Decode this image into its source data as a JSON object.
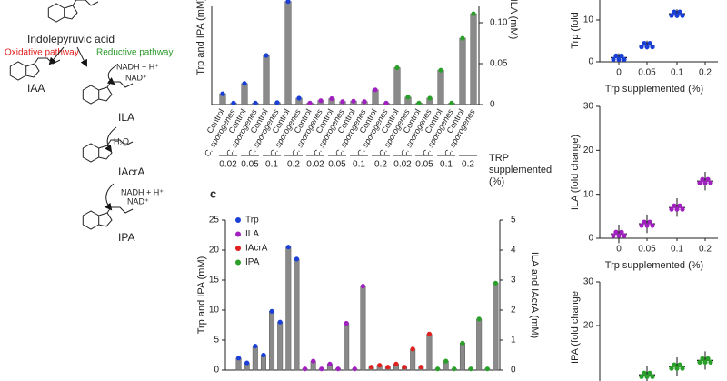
{
  "diagram": {
    "compound_top": "Indolepyruvic acid",
    "oxidative": "Oxidative pathway",
    "reductive": "Reductive pathway",
    "cofactor1_in": "NADH + H⁺",
    "cofactor1_out": "NAD⁺",
    "product_oxidative": "IAA",
    "intermediate1": "ILA",
    "water": "H₂O",
    "intermediate2": "IAcrA",
    "cofactor2_in": "NADH + H⁺",
    "cofactor2_out": "NAD⁺",
    "product_reductive": "IPA"
  },
  "panel_label": "c",
  "chart_data": [
    {
      "type": "bar",
      "ylabel": "Trp and IPA (mM)",
      "y2label": "ILA (mM)",
      "categories": [
        "Control",
        "C. sporogenes",
        "Control",
        "C. sporogenes",
        "Control",
        "C. sporogenes",
        "Control",
        "C. sporogenes",
        "Control",
        "C. sporogenes",
        "Control",
        "C. sporogenes",
        "Control",
        "C. sporogenes",
        "Control",
        "C. sporogenes",
        "Control",
        "C. sporogenes",
        "Control",
        "C. sporogenes",
        "Control",
        "C. sporogenes",
        "Control",
        "C. sporogenes"
      ],
      "values": [
        2.2,
        0.3,
        4.3,
        0.3,
        10,
        0.4,
        21,
        1.3,
        0.3,
        0.8,
        1.2,
        0.6,
        0.7,
        0.6,
        3,
        0.3,
        7.5,
        1.5,
        0.3,
        1.3,
        7,
        0.3,
        13.5,
        18.5
      ],
      "colors": [
        "#1a3fd6",
        "#1a3fd6",
        "#1a3fd6",
        "#1a3fd6",
        "#1a3fd6",
        "#1a3fd6",
        "#1a3fd6",
        "#1a3fd6",
        "#a020c0",
        "#a020c0",
        "#a020c0",
        "#a020c0",
        "#a020c0",
        "#a020c0",
        "#a020c0",
        "#a020c0",
        "#2aa02a",
        "#2aa02a",
        "#2aa02a",
        "#2aa02a",
        "#2aa02a",
        "#2aa02a",
        "#2aa02a",
        "#2aa02a"
      ],
      "ylim": [
        0,
        20
      ],
      "y2lim": [
        0,
        0.12
      ],
      "y2ticks": [
        0,
        0.05,
        {
          "value": 0.1,
          "label": "0.10"
        }
      ],
      "groups": [
        "0.02",
        "0.05",
        "0.1",
        "0.2",
        "0.02",
        "0.05",
        "0.1",
        "0.2",
        "0.02",
        "0.05",
        "0.1",
        "0.2"
      ],
      "xlabel": [
        "TRP",
        "supplemented",
        "(%)"
      ]
    },
    {
      "type": "bar",
      "ylabel": "Trp and IPA (mM)",
      "y2label": "ILA and IAcrA (mM)",
      "series": [
        {
          "name": "Trp",
          "color": "#1a3fd6",
          "values": [
            2,
            1.2,
            4,
            2.5,
            9.8,
            8,
            20.5,
            18.5
          ]
        },
        {
          "name": "ILA",
          "color": "#a020c0",
          "values": [
            0.2,
            1.5,
            0.2,
            1,
            0.2,
            7.8,
            0.2,
            14
          ]
        },
        {
          "name": "IAcrA",
          "color": "#e0201e",
          "values": [
            0.5,
            0.8,
            0.5,
            1,
            0.5,
            3.5,
            0.5,
            6
          ]
        },
        {
          "name": "IPA",
          "color": "#2aa02a",
          "values": [
            0.2,
            1.5,
            0.2,
            4.5,
            0.2,
            8.5,
            0.2,
            14.5
          ]
        }
      ],
      "ylim": [
        0,
        25
      ],
      "yticks": [
        0,
        5,
        10,
        15,
        20,
        25
      ],
      "y2lim": [
        0,
        5
      ],
      "y2ticks": [
        0,
        1,
        2,
        3,
        4,
        5
      ]
    },
    {
      "type": "dot",
      "ylabel": "Trp (fold",
      "xlabel": "Trp supplemented (%)",
      "categories": [
        "0",
        "0.05",
        "0.1",
        "0.2"
      ],
      "values": [
        1,
        4,
        11.5,
        null
      ],
      "color": "#1a3fd6",
      "ylim": [
        0,
        15
      ],
      "yticks": [
        0,
        10
      ]
    },
    {
      "type": "dot",
      "ylabel": "ILA (fold change)",
      "xlabel": "Trp supplemented (%)",
      "categories": [
        "0",
        "0.05",
        "0.1",
        "0.2"
      ],
      "values": [
        1,
        3.3,
        7,
        13
      ],
      "color": "#a020c0",
      "ylim": [
        0,
        30
      ],
      "yticks": [
        0,
        10,
        20,
        30
      ]
    },
    {
      "type": "dot",
      "ylabel": "IPA (fold change",
      "values": [
        null,
        8.7,
        10.6,
        12
      ],
      "color": "#2aa02a",
      "ylim": [
        0,
        30
      ],
      "yticks": [
        20,
        30
      ]
    }
  ]
}
